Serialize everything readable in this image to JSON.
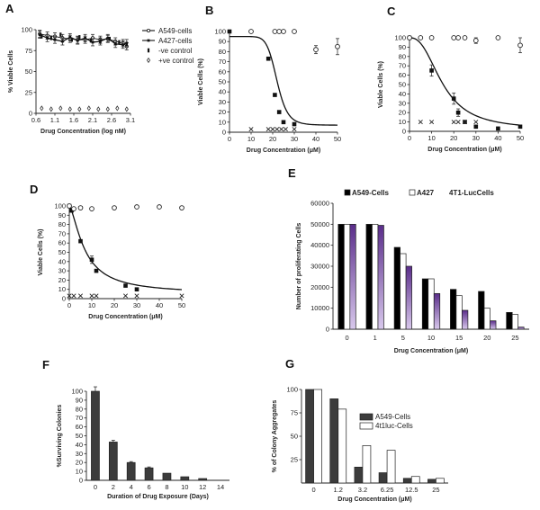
{
  "chart_data": [
    {
      "id": "A",
      "type": "line",
      "panel_label": "A",
      "xlabel": "Drug Concentration (log nM)",
      "ylabel": "% Viable Cells",
      "xlim": [
        0.6,
        3.1
      ],
      "ylim": [
        0,
        100
      ],
      "xticks": [
        "0.6",
        "1.1",
        "1.6",
        "2.1",
        "2.6",
        "3.1"
      ],
      "xtick_values": [
        0.6,
        1.1,
        1.6,
        2.1,
        2.6,
        3.1
      ],
      "yticks": [
        "0",
        "25",
        "50",
        "75",
        "100"
      ],
      "ytick_values": [
        0,
        25,
        50,
        75,
        100
      ],
      "legend": [
        "A549-cells",
        "A427-cells",
        "-ve control",
        "+ve control"
      ],
      "series": [
        {
          "name": "A549-cells",
          "kind": "line-open",
          "x": [
            0.7,
            0.9,
            1.1,
            1.3,
            1.5,
            1.7,
            1.9,
            2.1,
            2.3,
            2.5,
            2.7,
            2.9,
            3.0
          ],
          "y": [
            95,
            93,
            92,
            90,
            89,
            88,
            88,
            90,
            88,
            89,
            86,
            84,
            80
          ]
        },
        {
          "name": "A427-cells",
          "kind": "line-filled",
          "x": [
            0.7,
            0.9,
            1.1,
            1.3,
            1.5,
            1.7,
            1.9,
            2.1,
            2.3,
            2.5,
            2.7,
            2.9,
            3.0
          ],
          "y": [
            94,
            90,
            88,
            86,
            91,
            87,
            90,
            85,
            86,
            90,
            83,
            82,
            84
          ]
        },
        {
          "name": "-ve control",
          "kind": "bar-marker",
          "x": [
            0.75,
            1.0,
            1.25,
            1.55,
            1.75,
            2.05,
            2.3,
            2.55,
            2.8,
            3.0
          ],
          "y": [
            92,
            90,
            94,
            88,
            91,
            87,
            86,
            89,
            85,
            83
          ]
        },
        {
          "name": "+ve control",
          "kind": "open-diamond",
          "x": [
            0.75,
            1.0,
            1.25,
            1.5,
            1.75,
            2.0,
            2.25,
            2.5,
            2.75,
            3.0
          ],
          "y": [
            6,
            5,
            6,
            5,
            5,
            6,
            5,
            5,
            6,
            5
          ]
        }
      ]
    },
    {
      "id": "B",
      "type": "scatter",
      "panel_label": "B",
      "xlabel": "Drug Concentration (μM)",
      "ylabel": "Viable Cells (%)",
      "xlim": [
        0,
        50
      ],
      "ylim": [
        0,
        100
      ],
      "xticks": [
        "0",
        "10",
        "20",
        "30",
        "40",
        "50"
      ],
      "xtick_values": [
        0,
        10,
        20,
        30,
        40,
        50
      ],
      "yticks": [
        "0",
        "10",
        "20",
        "30",
        "40",
        "50",
        "60",
        "70",
        "80",
        "90",
        "100"
      ],
      "ytick_values": [
        0,
        10,
        20,
        30,
        40,
        50,
        60,
        70,
        80,
        90,
        100
      ],
      "series": [
        {
          "name": "",
          "kind": "filled-square",
          "x": [
            0,
            18,
            21,
            23,
            25,
            30
          ],
          "y": [
            100,
            73,
            37,
            20,
            10,
            8
          ]
        },
        {
          "name": "",
          "kind": "open-circle",
          "x": [
            10,
            21,
            23,
            25,
            30,
            40,
            50
          ],
          "y": [
            100,
            100,
            100,
            100,
            100,
            82,
            85
          ],
          "yerr": [
            0,
            0,
            0,
            0,
            0,
            4,
            8
          ]
        },
        {
          "name": "",
          "kind": "cross",
          "x": [
            10,
            18,
            20,
            22,
            24,
            26,
            30
          ],
          "y": [
            3,
            3,
            3,
            3,
            3,
            3,
            3
          ]
        }
      ],
      "fit": {
        "top": 95,
        "bottom": 7,
        "ic50": 22,
        "hill": 9
      }
    },
    {
      "id": "C",
      "type": "scatter",
      "panel_label": "C",
      "xlabel": "Drug Concentration (μM)",
      "ylabel": "Viable Cells (%)",
      "xlim": [
        0,
        50
      ],
      "ylim": [
        0,
        100
      ],
      "xticks": [
        "0",
        "10",
        "20",
        "30",
        "40",
        "50"
      ],
      "xtick_values": [
        0,
        10,
        20,
        30,
        40,
        50
      ],
      "yticks": [
        "0",
        "10",
        "20",
        "30",
        "40",
        "50",
        "60",
        "70",
        "80",
        "90",
        "100"
      ],
      "ytick_values": [
        0,
        10,
        20,
        30,
        40,
        50,
        60,
        70,
        80,
        90,
        100
      ],
      "series": [
        {
          "name": "",
          "kind": "filled-square",
          "x": [
            0,
            10,
            20,
            22,
            25,
            30,
            40,
            50
          ],
          "y": [
            100,
            65,
            35,
            20,
            10,
            5,
            3,
            5
          ],
          "yerr": [
            0,
            6,
            6,
            4,
            0,
            0,
            0,
            0
          ]
        },
        {
          "name": "",
          "kind": "open-circle",
          "x": [
            0,
            5,
            10,
            20,
            22,
            25,
            30,
            40,
            50
          ],
          "y": [
            100,
            100,
            100,
            100,
            100,
            100,
            97,
            100,
            92
          ],
          "yerr": [
            0,
            0,
            0,
            0,
            0,
            0,
            3,
            0,
            8
          ]
        },
        {
          "name": "",
          "kind": "cross",
          "x": [
            5,
            10,
            20,
            22,
            25,
            30
          ],
          "y": [
            10,
            10,
            10,
            10,
            10,
            10
          ]
        }
      ],
      "fit": {
        "top": 100,
        "bottom": 2,
        "ic50": 15,
        "hill": 2.5
      }
    },
    {
      "id": "D",
      "type": "scatter",
      "panel_label": "D",
      "xlabel": "Drug Concentration (μM)",
      "ylabel": "Viable Cells (%)",
      "xlim": [
        0,
        50
      ],
      "ylim": [
        0,
        100
      ],
      "xticks": [
        "0",
        "10",
        "20",
        "30",
        "40",
        "50"
      ],
      "xtick_values": [
        0,
        10,
        20,
        30,
        40,
        50
      ],
      "yticks": [
        "0",
        "10",
        "20",
        "30",
        "40",
        "50",
        "60",
        "70",
        "80",
        "90",
        "100"
      ],
      "ytick_values": [
        0,
        10,
        20,
        30,
        40,
        50,
        60,
        70,
        80,
        90,
        100
      ],
      "series": [
        {
          "name": "",
          "kind": "filled-square",
          "x": [
            0,
            1,
            5,
            10,
            12,
            25,
            30
          ],
          "y": [
            100,
            95,
            62,
            42,
            30,
            14,
            10
          ],
          "yerr": [
            0,
            0,
            0,
            4,
            0,
            0,
            0
          ]
        },
        {
          "name": "",
          "kind": "open-circle",
          "x": [
            0,
            2,
            5,
            10,
            20,
            30,
            40,
            50
          ],
          "y": [
            100,
            97,
            98,
            97,
            98,
            99,
            99,
            98
          ]
        },
        {
          "name": "",
          "kind": "cross",
          "x": [
            0,
            2,
            5,
            10,
            12,
            25,
            30,
            50
          ],
          "y": [
            3,
            3,
            3,
            3,
            3,
            3,
            3,
            3
          ]
        }
      ],
      "fit": {
        "top": 100,
        "bottom": 5,
        "ic50": 7,
        "hill": 1.5
      }
    },
    {
      "id": "E",
      "type": "bar",
      "panel_label": "E",
      "xlabel": "Drug Concentration (μM)",
      "ylabel": "Number of proliferating Cells",
      "categories": [
        "0",
        "1",
        "5",
        "10",
        "15",
        "20",
        "25"
      ],
      "ylim": [
        0,
        60000
      ],
      "yticks": [
        "0",
        "10000",
        "20000",
        "30000",
        "40000",
        "50000",
        "60000"
      ],
      "ytick_values": [
        0,
        10000,
        20000,
        30000,
        40000,
        50000,
        60000
      ],
      "legend": [
        "A549-Cells",
        "A427",
        "4T1-LucCells"
      ],
      "series": [
        {
          "name": "A549-Cells",
          "color": "#000000",
          "values": [
            50000,
            50000,
            39000,
            24000,
            19000,
            18000,
            8000
          ]
        },
        {
          "name": "A427",
          "color": "#ffffff",
          "values": [
            50000,
            50000,
            36000,
            24000,
            16000,
            10000,
            7000
          ]
        },
        {
          "name": "4T1-LucCells",
          "color": "#6a3d9a",
          "values": [
            50000,
            49500,
            30000,
            17000,
            9000,
            4000,
            1000
          ]
        }
      ]
    },
    {
      "id": "F",
      "type": "bar",
      "panel_label": "F",
      "xlabel": "Duration of Drug Exposure (Days)",
      "ylabel": "%Surviving Colonies",
      "categories": [
        "0",
        "2",
        "4",
        "6",
        "8",
        "10",
        "12",
        "14"
      ],
      "ylim": [
        0,
        100
      ],
      "yticks": [
        "0",
        "10",
        "20",
        "30",
        "40",
        "50",
        "60",
        "70",
        "80",
        "90",
        "100"
      ],
      "ytick_values": [
        0,
        10,
        20,
        30,
        40,
        50,
        60,
        70,
        80,
        90,
        100
      ],
      "series": [
        {
          "name": "",
          "color": "#3c3c3c",
          "values": [
            100,
            43,
            20,
            14,
            8,
            4,
            2,
            0
          ],
          "yerr": [
            5,
            2,
            1,
            1,
            0,
            0,
            0,
            0
          ]
        }
      ]
    },
    {
      "id": "G",
      "type": "bar",
      "panel_label": "G",
      "xlabel": "Drug Concentration (μM)",
      "ylabel": "% of Colony Aggregates",
      "categories": [
        "0",
        "1.2",
        "3.2",
        "6.25",
        "12.5",
        "25"
      ],
      "ylim": [
        0,
        100
      ],
      "yticks": [
        "25",
        "50",
        "75",
        "100"
      ],
      "ytick_values": [
        25,
        50,
        75,
        100
      ],
      "legend": [
        "A549-Cells",
        "4t1luc-Cells"
      ],
      "series": [
        {
          "name": "A549-Cells",
          "color": "#3c3c3c",
          "values": [
            100,
            90,
            17,
            11,
            5,
            4
          ]
        },
        {
          "name": "4t1luc-Cells",
          "color": "#ffffff",
          "values": [
            100,
            79,
            40,
            35,
            7,
            5
          ]
        }
      ]
    }
  ]
}
